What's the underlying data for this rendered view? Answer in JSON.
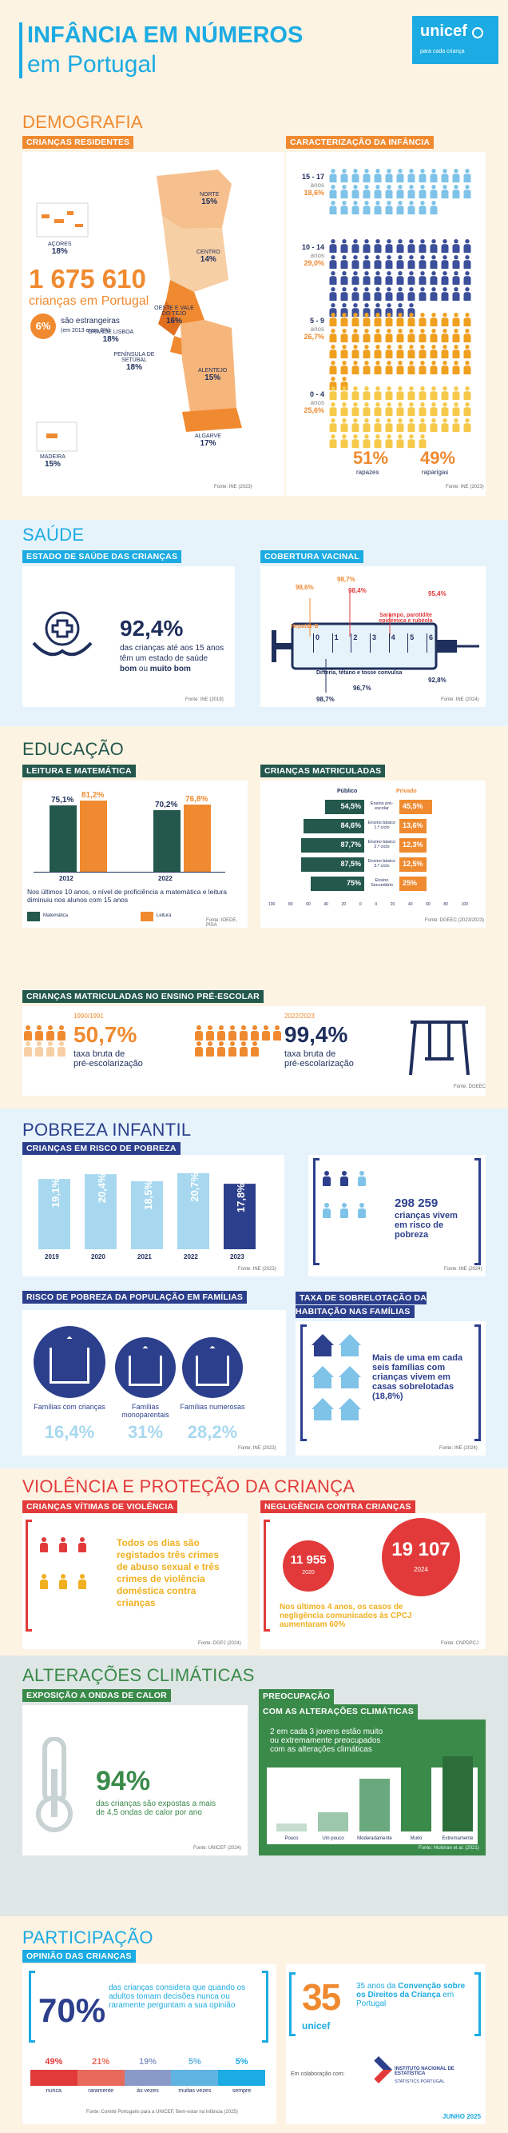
{
  "header": {
    "title_line1": "INFÂNCIA EM NÚMEROS",
    "title_line2": "em Portugal",
    "logo": "unicef",
    "logo_tagline": "para cada criança"
  },
  "colors": {
    "orange": "#f08a30",
    "cream": "#fdf3e3",
    "blue": "#1cabe2",
    "navy": "#1f2f5c",
    "teal": "#24584d",
    "green": "#3a8a4a",
    "red": "#e23a3a",
    "purple": "#2c3f8c",
    "lightblue": "#e6f3fb",
    "grey": "#dfe6e6"
  },
  "demografia": {
    "title": "DEMOGRAFIA",
    "residentes_tag": "CRIANÇAS RESIDENTES",
    "caracterizacao_tag": "CARACTERIZAÇÃO DA INFÂNCIA",
    "total": "1 675 610",
    "total_label": "crianças em Portugal",
    "estrangeiras_pct": "6%",
    "estrangeiras_label": "são estrangeiras",
    "estrangeiras_sub": "(em 2013 eram 3%)",
    "regions": [
      {
        "name": "AÇORES",
        "pct": "18%"
      },
      {
        "name": "NORTE",
        "pct": "15%"
      },
      {
        "name": "CENTRO",
        "pct": "14%"
      },
      {
        "name": "OESTE E VALE DO TEJO",
        "pct": "16%"
      },
      {
        "name": "GRANDE LISBOA",
        "pct": "18%"
      },
      {
        "name": "PENÍNSULA DE SETÚBAL",
        "pct": "18%"
      },
      {
        "name": "ALENTEJO",
        "pct": "15%"
      },
      {
        "name": "ALGARVE",
        "pct": "17%"
      },
      {
        "name": "MADEIRA",
        "pct": "15%"
      }
    ],
    "ages": [
      {
        "range": "15 - 17",
        "unit": "anos",
        "pct": "18,6%",
        "color": "#7fc3e8",
        "count": 36
      },
      {
        "range": "10 - 14",
        "unit": "anos",
        "pct": "29,0%",
        "color": "#3b4f9a",
        "count": 60
      },
      {
        "range": "5 - 9",
        "unit": "anos",
        "pct": "26,7%",
        "color": "#f0a020",
        "count": 54
      },
      {
        "range": "0 - 4",
        "unit": "anos",
        "pct": "25,6%",
        "color": "#f6c94a",
        "count": 48
      }
    ],
    "rapazes_pct": "51%",
    "rapazes": "rapazes",
    "raparigas_pct": "49%",
    "raparigas": "raparigas",
    "source1": "Fonte: INE (2023)",
    "source2": "Fonte: INE (2023)"
  },
  "saude": {
    "title": "SAÚDE",
    "estado_tag": "ESTADO DE SAÚDE DAS CRIANÇAS",
    "cobertura_tag": "COBERTURA VACINAL",
    "pct": "92,4%",
    "text1": "das crianças até aos 15 anos",
    "text2": "têm um estado de saúde",
    "text3a": "bom",
    "text3b": " ou ",
    "text3c": "muito bom",
    "vac_labels": {
      "hepatite": "Hepatite B",
      "sarampo": "Sarampo, parotidite epidémica e rubéola",
      "difteria": "Difteria, tétano e tosse convulsa"
    },
    "vac_values": [
      "98,6%",
      "98,7%",
      "98,4%",
      "95,4%",
      "96,7%",
      "92,8%",
      "98,7%"
    ],
    "ticks": [
      "0",
      "1",
      "2",
      "3",
      "4",
      "5",
      "6"
    ],
    "source1": "Fonte: INE (2019)",
    "source2": "Fonte: INE (2024)"
  },
  "educacao": {
    "title": "EDUCAÇÃO",
    "leitura_tag": "LEITURA E MATEMÁTICA",
    "matriculadas_tag": "CRIANÇAS MATRICULADAS",
    "years": [
      "2012",
      "2022"
    ],
    "mat": [
      "75,1%",
      "70,2%"
    ],
    "leit": [
      "81,2%",
      "76,8%"
    ],
    "text": "Nos últimos 10 anos, o nível de proficiência a matemática e leitura diminuiu nos alunos com 15 anos",
    "legend_mat": "Matemática",
    "legend_leit": "Leitura",
    "publico": "Público",
    "privado": "Privado",
    "levels": [
      "Ensino pré-escolar",
      "Ensino básico 1.º ciclo",
      "Ensino básico 2.º ciclo",
      "Ensino básico 3.º ciclo",
      "Ensino Secundário"
    ],
    "pub": [
      "54,5%",
      "84,6%",
      "87,7%",
      "87,5%",
      "75%"
    ],
    "priv": [
      "45,5%",
      "13,6%",
      "12,3%",
      "12,5%",
      "25%"
    ],
    "axis": [
      "100",
      "80",
      "60",
      "40",
      "20",
      "0",
      "0",
      "20",
      "40",
      "60",
      "80",
      "100"
    ],
    "pre_tag": "CRIANÇAS MATRICULADAS NO ENSINO PRÉ-ESCOLAR",
    "y1": "1990/1991",
    "v1": "50,7%",
    "y2": "2022/2023",
    "v2": "99,4%",
    "taxa": "taxa bruta de",
    "taxa2": "pré-escolarização",
    "source1": "Fonte: IOEDE, PISA",
    "source2": "Fonte: DGEEC (2023/2023)",
    "source3": "Fonte: DGEEC"
  },
  "pobreza": {
    "title": "POBREZA INFANTIL",
    "risco_tag": "CRIANÇAS EM RISCO DE POBREZA",
    "chart_data": {
      "type": "bar",
      "categories": [
        "2019",
        "2020",
        "2021",
        "2022",
        "2023"
      ],
      "values": [
        19.1,
        20.4,
        18.5,
        20.7,
        17.8
      ],
      "labels": [
        "19,1%",
        "20,4%",
        "18,5%",
        "20,7%",
        "17,8%"
      ]
    },
    "num": "298 259",
    "num_text": "crianças vivem em risco de pobreza",
    "familias_tag": "RISCO DE POBREZA DA POPULAÇÃO EM FAMÍLIAS",
    "sobre_tag": "TAXA DE SOBRELOTAÇÃO DA HABITAÇÃO NAS FAMÍLIAS",
    "fam": [
      {
        "label": "Famílias com crianças",
        "pct": "16,4%"
      },
      {
        "label": "Famílias monoparentais",
        "pct": "31%"
      },
      {
        "label": "Famílias numerosas",
        "pct": "28,2%"
      }
    ],
    "sobre_text": "Mais de uma em cada seis famílias com crianças vivem em casas sobrelotadas (18,8%)",
    "source1": "Fonte: INE (2023)",
    "source2": "Fonte: INE (2024)",
    "source3": "Fonte: INE (2023)",
    "source4": "Fonte: INE (2024)"
  },
  "violencia": {
    "title": "VIOLÊNCIA E PROTEÇÃO DA CRIANÇA",
    "vitimas_tag": "CRIANÇAS VÍTIMAS DE VIOLÊNCIA",
    "neg_tag": "NEGLIGÊNCIA CONTRA CRIANÇAS",
    "text": "Todos os dias são registados três crimes de abuso sexual e três crimes de violência doméstica contra crianças",
    "n2020": "11 955",
    "y2020": "2020",
    "n2024": "19 107",
    "y2024": "2024",
    "neg_text": "Nos últimos 4 anos, os casos de negligência comunicados às CPCJ aumentaram 60%",
    "source1": "Fonte: DGPJ (2024)",
    "source2": "Fonte: CNPDPCJ"
  },
  "clima": {
    "title": "ALTERAÇÕES CLIMÁTICAS",
    "calor_tag": "EXPOSIÇÃO A ONDAS DE CALOR",
    "preoc_tag1": "PREOCUPAÇÃO",
    "preoc_tag2": "COM AS ALTERAÇÕES CLIMÁTICAS",
    "pct": "94%",
    "text": "das crianças são expostas a mais de 4,5 ondas de calor por ano",
    "preoc_text": "2 em cada 3 jovens estão muito ou extremamente preocupados com as alterações climáticas",
    "chart_data": {
      "type": "bar",
      "categories": [
        "Pouco",
        "Um pouco",
        "Moderadamente",
        "Muito",
        "Extremamente"
      ],
      "values": [
        5,
        12,
        33,
        55,
        47
      ]
    },
    "source1": "Fonte: UNICEF (2024)",
    "source2": "Fonte: Hickman et al. (2021)"
  },
  "participacao": {
    "title": "PARTICIPAÇÃO",
    "tag": "OPINIÃO DAS CRIANÇAS",
    "pct": "70%",
    "text": "das crianças considera que quando os adultos tomam decisões nunca ou raramente perguntam a sua opinião",
    "scale": [
      {
        "pct": "49%",
        "label": "nunca"
      },
      {
        "pct": "21%",
        "label": "raramente"
      },
      {
        "pct": "19%",
        "label": "às vezes"
      },
      {
        "pct": "5%",
        "label": "muitas vezes"
      },
      {
        "pct": "5%",
        "label": "sempre"
      }
    ],
    "anos": "35",
    "conv_text1": "35 anos da ",
    "conv_bold": "Convenção sobre os Direitos da Criança",
    "conv_text2": " em Portugal",
    "colab": "Em colaboração com:",
    "ine": "INSTITUTO NACIONAL DE ESTATÍSTICA",
    "ine2": "STATISTICS PORTUGAL",
    "source": "Fonte: Comité Português para a UNICEF, Bem-estar na Infância (2025)",
    "date": "JUNHO 2025"
  }
}
